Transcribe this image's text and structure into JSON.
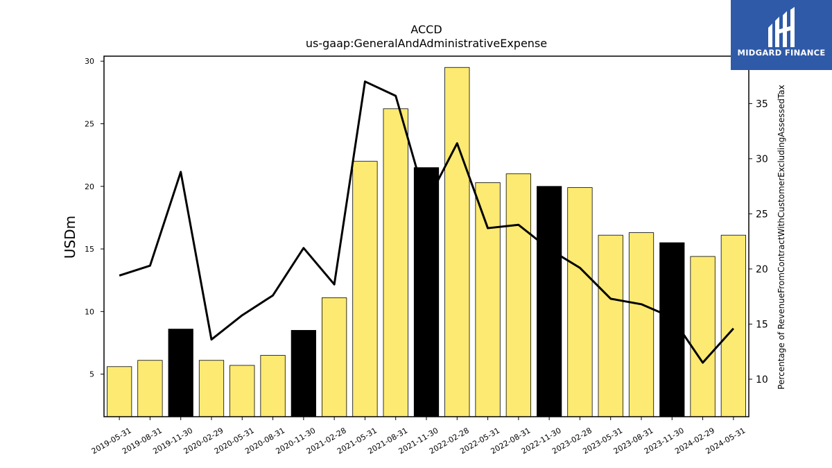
{
  "chart_data": {
    "type": "bar",
    "title": "ACCD",
    "subtitle": "us-gaap:GeneralAndAdministrativeExpense",
    "ylabel": "USDm",
    "y2label": "Percentage of RevenueFromContractWithCustomerExcludingAssessedTax",
    "categories": [
      "2019-05-31",
      "2019-08-31",
      "2019-11-30",
      "2020-02-29",
      "2020-05-31",
      "2020-08-31",
      "2020-11-30",
      "2021-02-28",
      "2021-05-31",
      "2021-08-31",
      "2021-11-30",
      "2022-02-28",
      "2022-05-31",
      "2022-08-31",
      "2022-11-30",
      "2023-02-28",
      "2023-05-31",
      "2023-08-31",
      "2023-11-30",
      "2024-02-29",
      "2024-05-31"
    ],
    "series": [
      {
        "type": "bar",
        "axis": "left",
        "values": [
          5.6,
          6.1,
          8.6,
          6.1,
          5.7,
          6.5,
          8.5,
          11.1,
          22.0,
          26.2,
          21.5,
          29.5,
          20.3,
          21.0,
          20.0,
          19.9,
          16.1,
          16.3,
          15.5,
          14.4,
          16.1
        ],
        "colors": [
          "#fdea72",
          "#fdea72",
          "#000000",
          "#fdea72",
          "#fdea72",
          "#fdea72",
          "#000000",
          "#fdea72",
          "#fdea72",
          "#fdea72",
          "#000000",
          "#fdea72",
          "#fdea72",
          "#fdea72",
          "#000000",
          "#fdea72",
          "#fdea72",
          "#fdea72",
          "#000000",
          "#fdea72",
          "#fdea72"
        ]
      },
      {
        "type": "line",
        "axis": "right",
        "color": "#000000",
        "values": [
          19.4,
          20.3,
          28.8,
          13.6,
          15.8,
          17.6,
          21.9,
          18.6,
          37.0,
          35.7,
          26.0,
          31.4,
          23.7,
          24.0,
          21.8,
          20.1,
          17.3,
          16.8,
          15.6,
          11.5,
          14.6
        ]
      }
    ],
    "ylim": [
      1.6,
      30.4
    ],
    "y2lim": [
      6.6,
      39.3
    ],
    "yticks": [
      5,
      10,
      15,
      20,
      25,
      30
    ],
    "y2ticks": [
      10,
      15,
      20,
      25,
      30,
      35
    ],
    "grid": false,
    "legend": "none"
  },
  "logo": {
    "text": "MIDGARD FINANCE"
  },
  "colors": {
    "bar_default": "#fdea72",
    "bar_highlight": "#000000",
    "logo_bg": "#2f5aa8"
  }
}
